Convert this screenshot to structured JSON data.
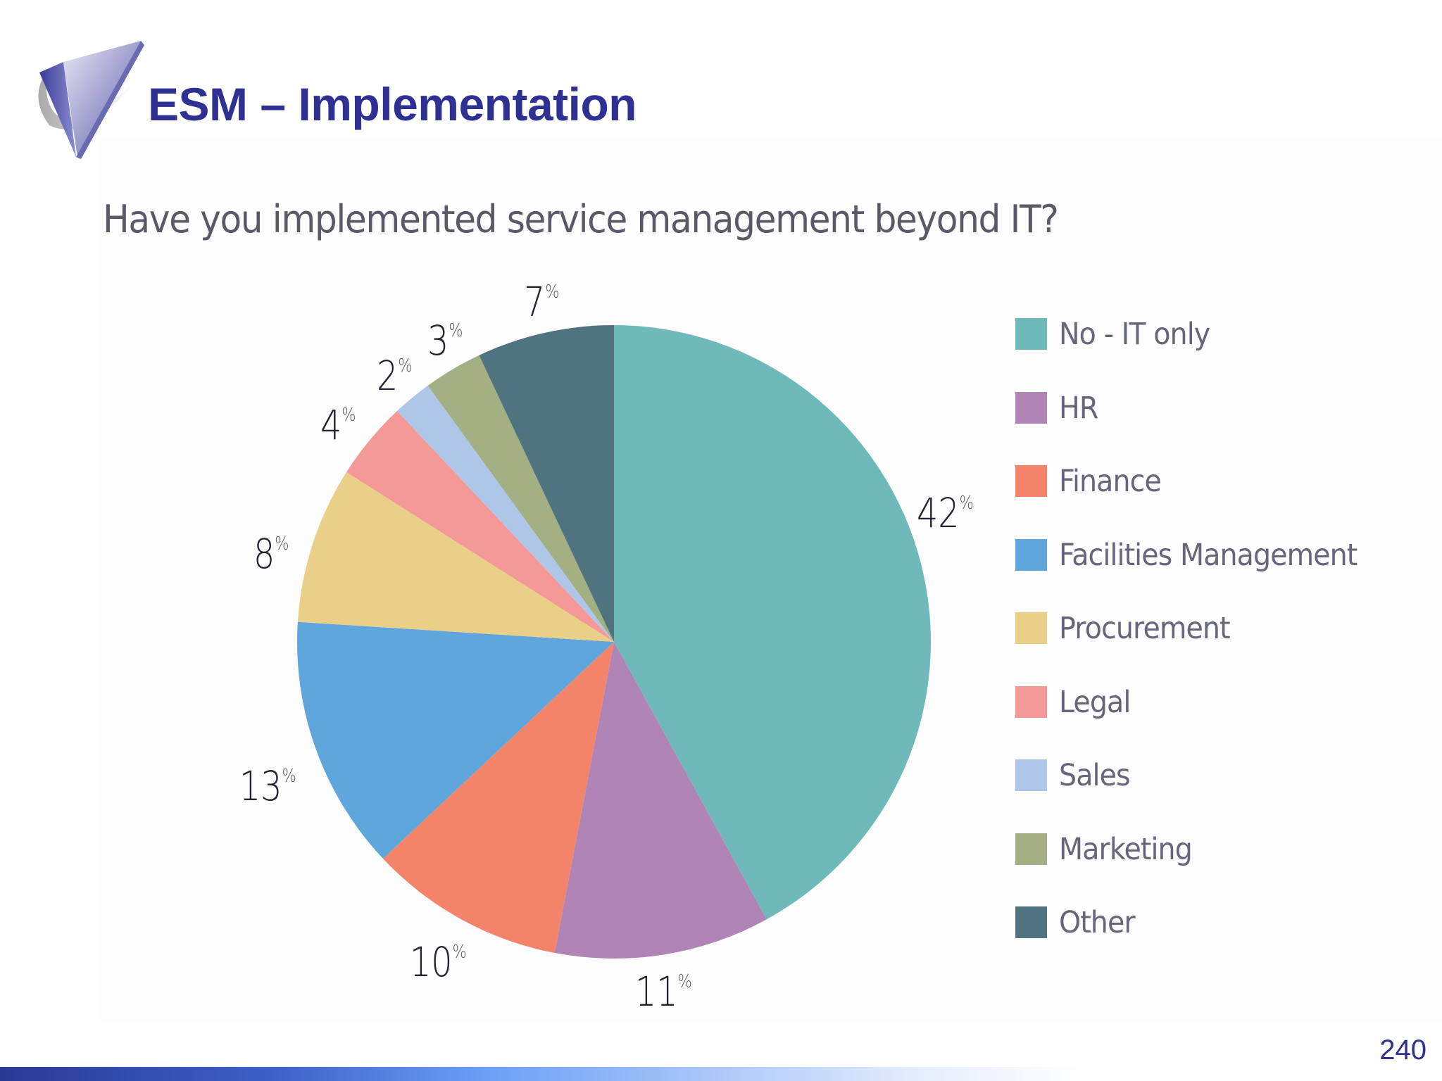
{
  "slide": {
    "title": "ESM – Implementation",
    "page_number": "240",
    "colors": {
      "title": "#2e3192",
      "footer_start": "#2b3a94",
      "footer_end": "#ffffff"
    }
  },
  "chart": {
    "title": "Have you implemented service management beyond IT?",
    "percent_sign": "%"
  },
  "chart_data": {
    "type": "pie",
    "title": "Have you implemented service management beyond IT?",
    "start_angle": "12 o'clock, clockwise",
    "legend_position": "right",
    "categories": [
      "No - IT only",
      "HR",
      "Finance",
      "Facilities Management",
      "Procurement",
      "Legal",
      "Sales",
      "Marketing",
      "Other"
    ],
    "values": [
      42,
      11,
      10,
      13,
      8,
      4,
      2,
      3,
      7
    ],
    "unit": "%",
    "colors": [
      "#70b9bb",
      "#b084b5",
      "#f3846a",
      "#5ea6dc",
      "#e9cf88",
      "#f59898",
      "#aec6e8",
      "#a3b083",
      "#4f7480"
    ],
    "labels": [
      "42",
      "11",
      "10",
      "13",
      "8",
      "4",
      "2",
      "3",
      "7"
    ]
  },
  "legend": {
    "items": [
      {
        "label": "No - IT only",
        "color": "#70b9bb"
      },
      {
        "label": "HR",
        "color": "#b084b5"
      },
      {
        "label": "Finance",
        "color": "#f3846a"
      },
      {
        "label": "Facilities Management",
        "color": "#5ea6dc"
      },
      {
        "label": "Procurement",
        "color": "#e9cf88"
      },
      {
        "label": "Legal",
        "color": "#f59898"
      },
      {
        "label": "Sales",
        "color": "#aec6e8"
      },
      {
        "label": "Marketing",
        "color": "#a3b083"
      },
      {
        "label": "Other",
        "color": "#4f7480"
      }
    ]
  }
}
